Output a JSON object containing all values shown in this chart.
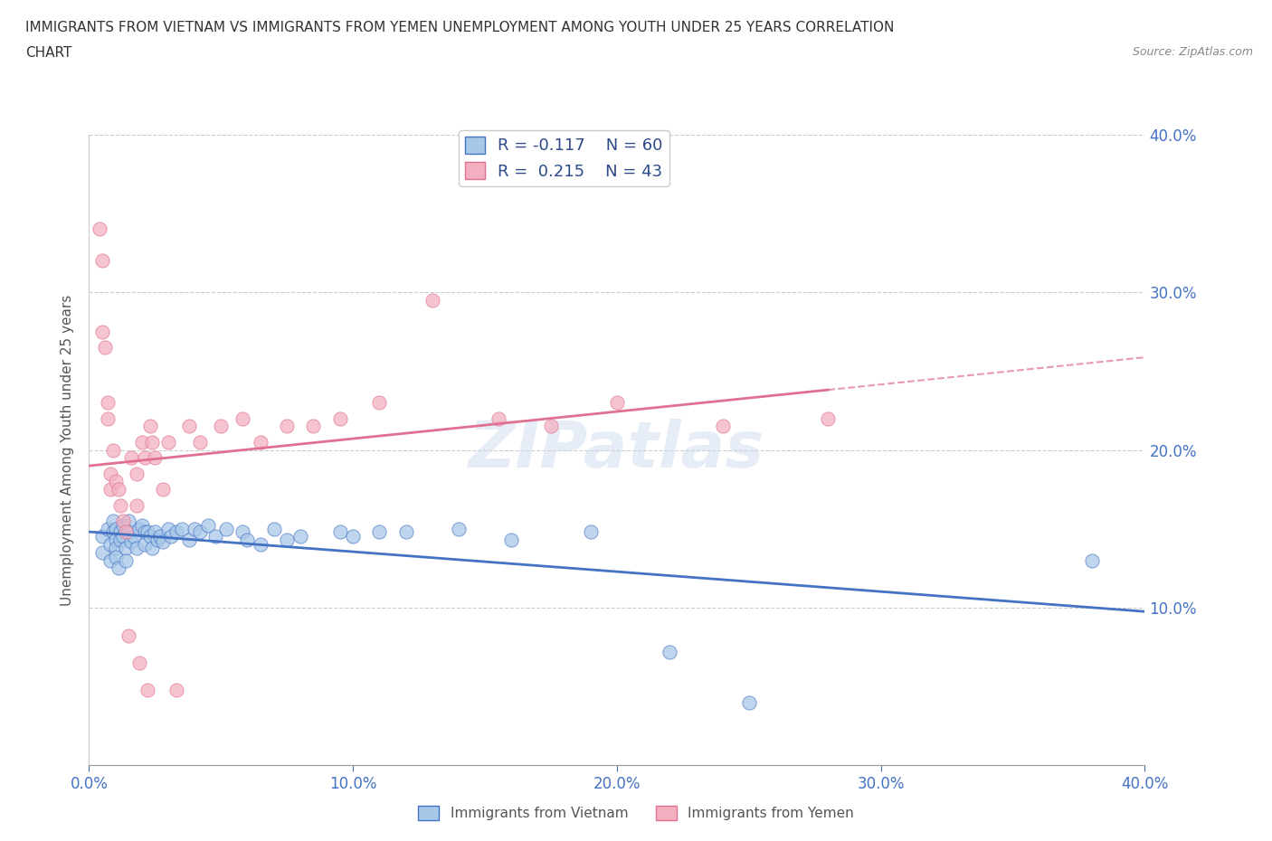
{
  "title_line1": "IMMIGRANTS FROM VIETNAM VS IMMIGRANTS FROM YEMEN UNEMPLOYMENT AMONG YOUTH UNDER 25 YEARS CORRELATION",
  "title_line2": "CHART",
  "source": "Source: ZipAtlas.com",
  "ylabel": "Unemployment Among Youth under 25 years",
  "xlim": [
    0.0,
    0.4
  ],
  "ylim": [
    0.0,
    0.4
  ],
  "x_ticks": [
    0.0,
    0.1,
    0.2,
    0.3,
    0.4
  ],
  "y_ticks": [
    0.0,
    0.1,
    0.2,
    0.3,
    0.4
  ],
  "x_tick_labels": [
    "0.0%",
    "10.0%",
    "20.0%",
    "30.0%",
    "40.0%"
  ],
  "y_tick_labels": [
    "",
    "10.0%",
    "20.0%",
    "30.0%",
    "40.0%"
  ],
  "vietnam_R": -0.117,
  "vietnam_N": 60,
  "yemen_R": 0.215,
  "yemen_N": 43,
  "vietnam_color": "#a8c8e8",
  "yemen_color": "#f4b0c0",
  "vietnam_line_color": "#4472c4",
  "yemen_line_color": "#e07090",
  "watermark": "ZIPatlas",
  "legend_text_color": "#2e4a8a",
  "vietnam_scatter_x": [
    0.005,
    0.005,
    0.007,
    0.008,
    0.008,
    0.009,
    0.009,
    0.01,
    0.01,
    0.01,
    0.01,
    0.011,
    0.012,
    0.012,
    0.013,
    0.013,
    0.014,
    0.014,
    0.015,
    0.015,
    0.016,
    0.017,
    0.018,
    0.019,
    0.02,
    0.021,
    0.021,
    0.022,
    0.023,
    0.024,
    0.025,
    0.026,
    0.027,
    0.028,
    0.03,
    0.031,
    0.033,
    0.035,
    0.038,
    0.04,
    0.042,
    0.045,
    0.048,
    0.052,
    0.058,
    0.06,
    0.065,
    0.07,
    0.075,
    0.08,
    0.095,
    0.1,
    0.11,
    0.12,
    0.14,
    0.16,
    0.19,
    0.22,
    0.25,
    0.38
  ],
  "vietnam_scatter_y": [
    0.145,
    0.135,
    0.15,
    0.14,
    0.13,
    0.155,
    0.148,
    0.15,
    0.143,
    0.138,
    0.132,
    0.125,
    0.148,
    0.143,
    0.152,
    0.145,
    0.138,
    0.13,
    0.155,
    0.148,
    0.142,
    0.145,
    0.138,
    0.15,
    0.152,
    0.148,
    0.14,
    0.148,
    0.145,
    0.138,
    0.148,
    0.143,
    0.145,
    0.142,
    0.15,
    0.145,
    0.148,
    0.15,
    0.143,
    0.15,
    0.148,
    0.152,
    0.145,
    0.15,
    0.148,
    0.143,
    0.14,
    0.15,
    0.143,
    0.145,
    0.148,
    0.145,
    0.148,
    0.148,
    0.15,
    0.143,
    0.148,
    0.072,
    0.04,
    0.13
  ],
  "yemen_scatter_x": [
    0.004,
    0.005,
    0.005,
    0.006,
    0.007,
    0.007,
    0.008,
    0.008,
    0.009,
    0.01,
    0.011,
    0.012,
    0.013,
    0.014,
    0.015,
    0.016,
    0.018,
    0.018,
    0.019,
    0.02,
    0.021,
    0.022,
    0.023,
    0.024,
    0.025,
    0.028,
    0.03,
    0.033,
    0.038,
    0.042,
    0.05,
    0.058,
    0.065,
    0.075,
    0.085,
    0.095,
    0.11,
    0.13,
    0.155,
    0.175,
    0.2,
    0.24,
    0.28
  ],
  "yemen_scatter_y": [
    0.34,
    0.32,
    0.275,
    0.265,
    0.23,
    0.22,
    0.185,
    0.175,
    0.2,
    0.18,
    0.175,
    0.165,
    0.155,
    0.148,
    0.082,
    0.195,
    0.185,
    0.165,
    0.065,
    0.205,
    0.195,
    0.048,
    0.215,
    0.205,
    0.195,
    0.175,
    0.205,
    0.048,
    0.215,
    0.205,
    0.215,
    0.22,
    0.205,
    0.215,
    0.215,
    0.22,
    0.23,
    0.295,
    0.22,
    0.215,
    0.23,
    0.215,
    0.22
  ]
}
